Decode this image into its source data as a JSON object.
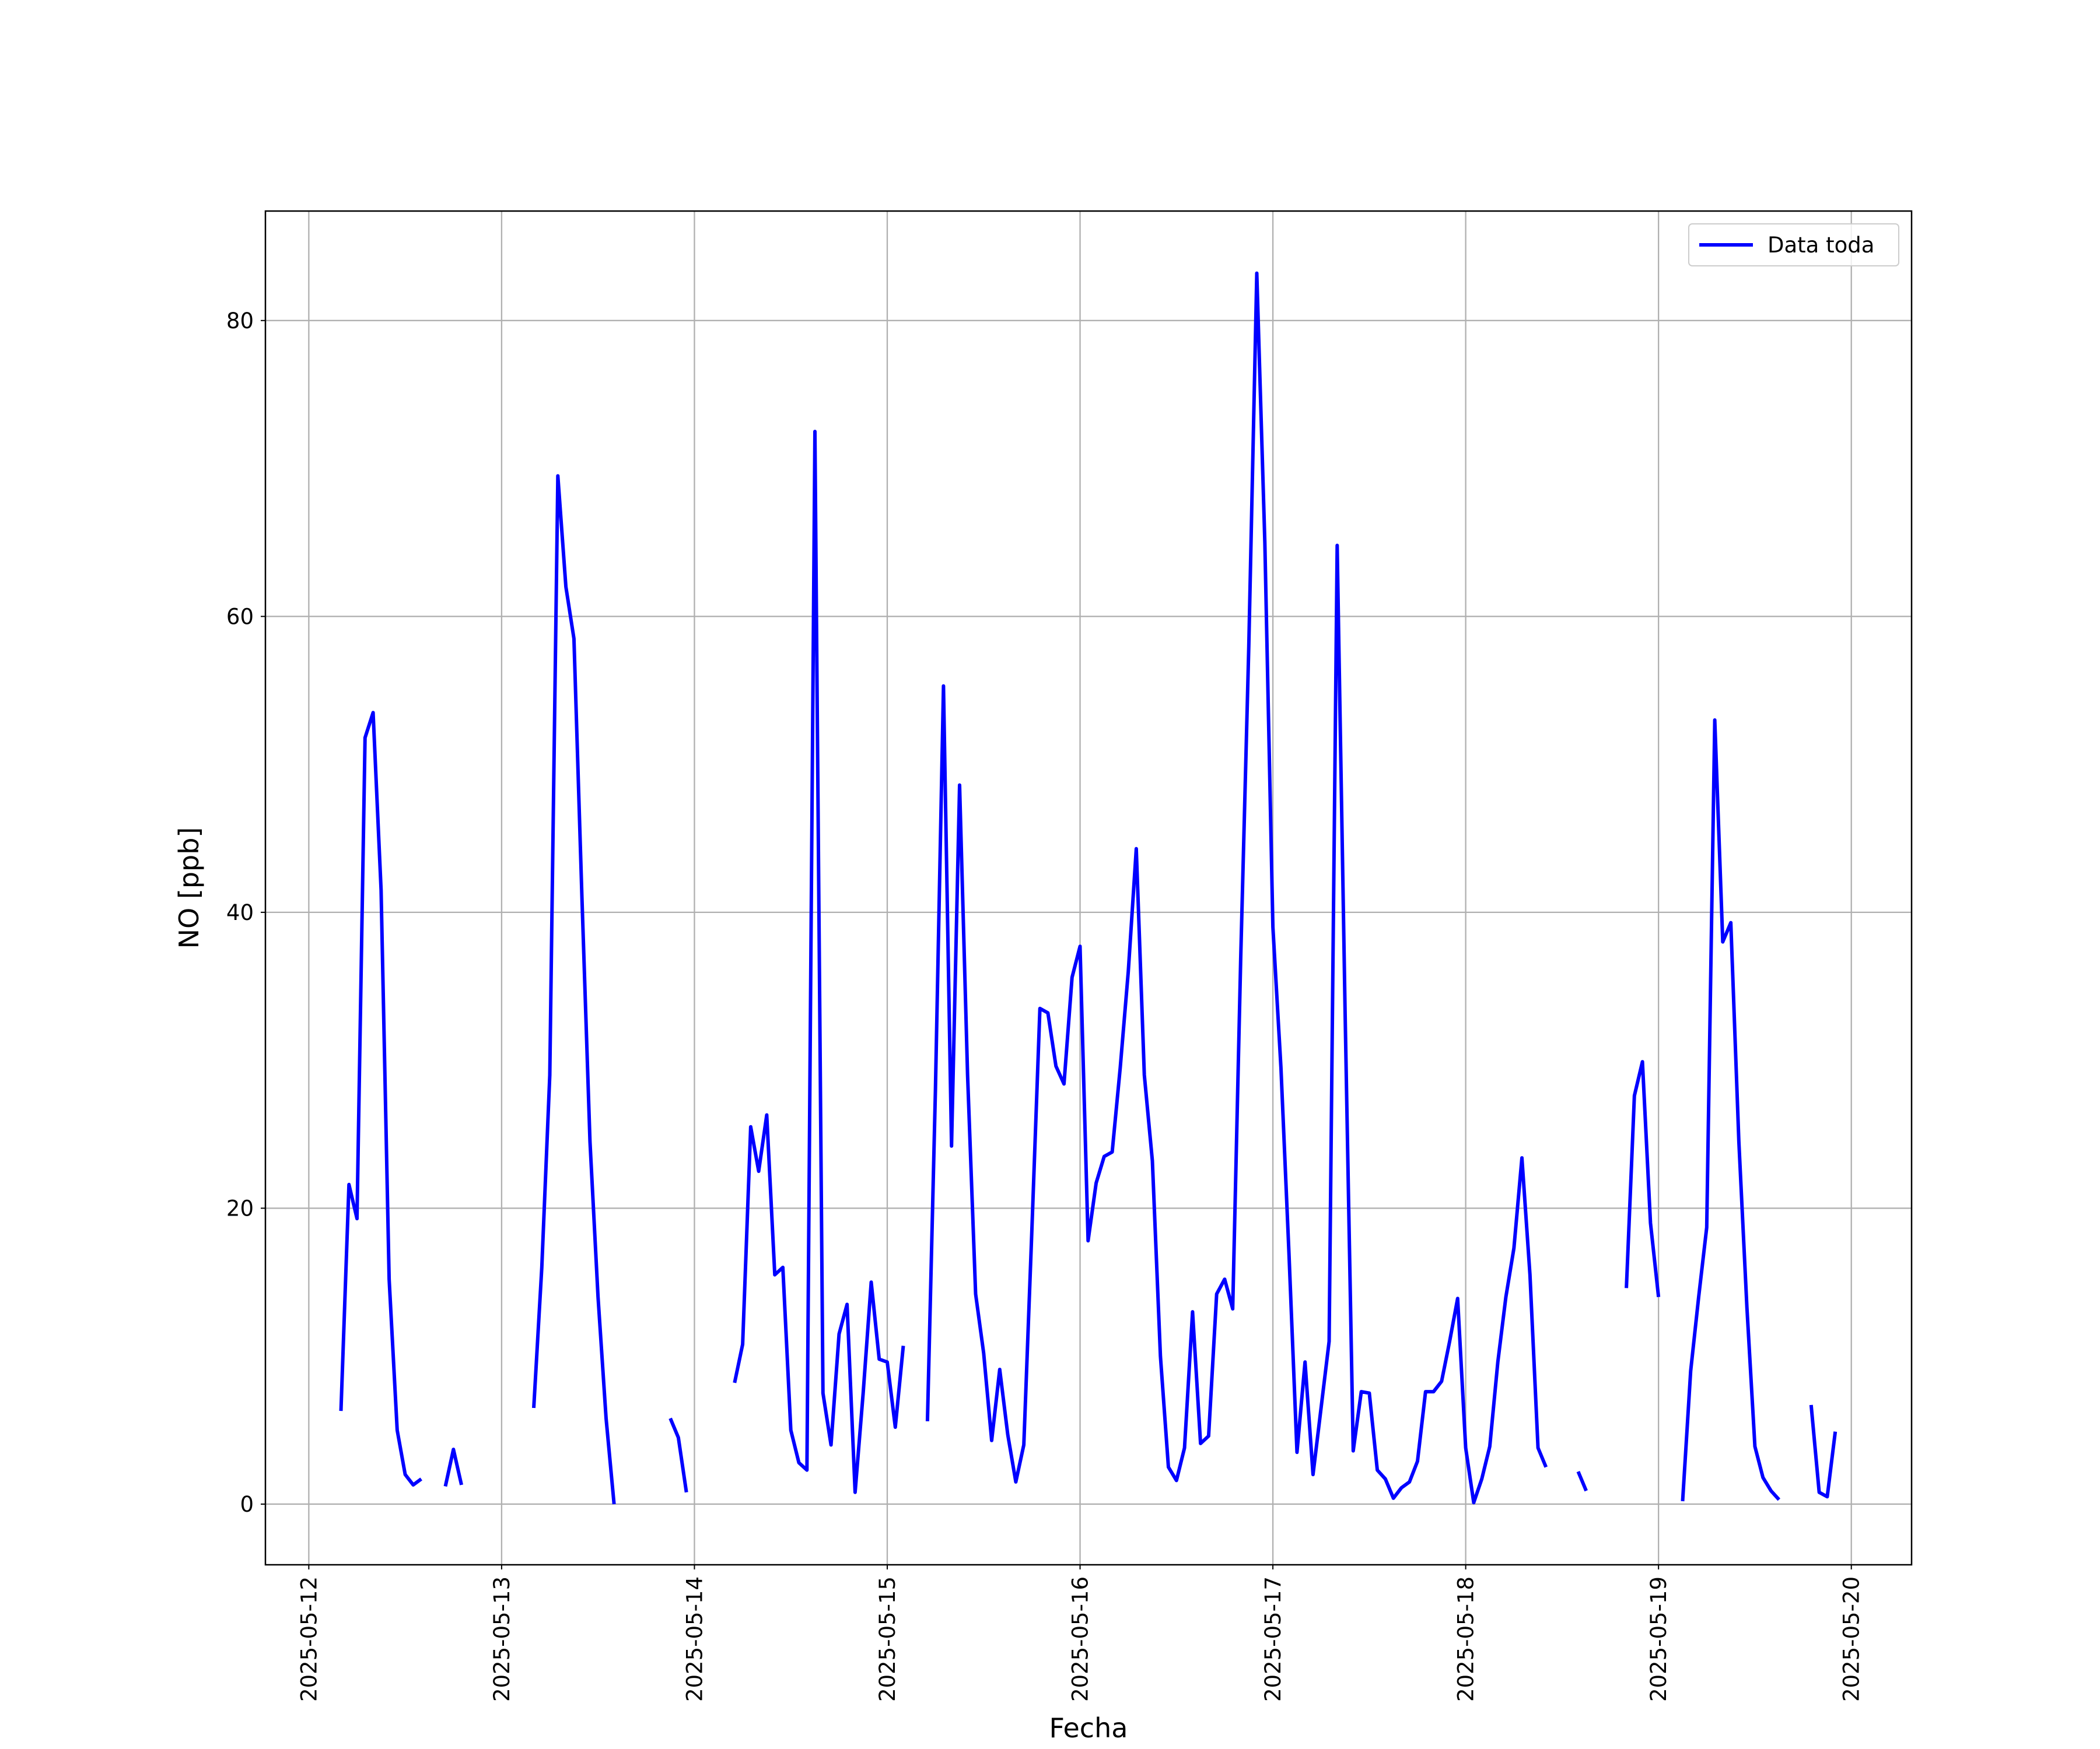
{
  "chart_data": {
    "type": "line",
    "xlabel": "Fecha",
    "ylabel": "NO [ppb]",
    "x": [
      "2025-05-12T04:00",
      "2025-05-12T05:00",
      "2025-05-12T06:00",
      "2025-05-12T07:00",
      "2025-05-12T08:00",
      "2025-05-12T09:00",
      "2025-05-12T10:00",
      "2025-05-12T11:00",
      "2025-05-12T12:00",
      "2025-05-12T13:00",
      "2025-05-12T14:00",
      "2025-05-12T15:00",
      "2025-05-12T17:00",
      "2025-05-12T18:00",
      "2025-05-12T19:00",
      "2025-05-12T20:00",
      "2025-05-13T04:00",
      "2025-05-13T05:00",
      "2025-05-13T06:00",
      "2025-05-13T07:00",
      "2025-05-13T08:00",
      "2025-05-13T09:00",
      "2025-05-13T10:00",
      "2025-05-13T11:00",
      "2025-05-13T12:00",
      "2025-05-13T13:00",
      "2025-05-13T14:00",
      "2025-05-13T15:00",
      "2025-05-13T21:00",
      "2025-05-13T22:00",
      "2025-05-13T23:00",
      "2025-05-14T00:00",
      "2025-05-14T05:00",
      "2025-05-14T06:00",
      "2025-05-14T07:00",
      "2025-05-14T08:00",
      "2025-05-14T09:00",
      "2025-05-14T10:00",
      "2025-05-14T11:00",
      "2025-05-14T12:00",
      "2025-05-14T13:00",
      "2025-05-14T14:00",
      "2025-05-14T15:00",
      "2025-05-14T16:00",
      "2025-05-14T17:00",
      "2025-05-14T18:00",
      "2025-05-14T19:00",
      "2025-05-14T20:00",
      "2025-05-14T21:00",
      "2025-05-14T22:00",
      "2025-05-14T23:00",
      "2025-05-15T00:00",
      "2025-05-15T01:00",
      "2025-05-15T02:00",
      "2025-05-15T03:00",
      "2025-05-15T05:00",
      "2025-05-15T06:00",
      "2025-05-15T07:00",
      "2025-05-15T08:00",
      "2025-05-15T09:00",
      "2025-05-15T10:00",
      "2025-05-15T11:00",
      "2025-05-15T12:00",
      "2025-05-15T13:00",
      "2025-05-15T14:00",
      "2025-05-15T15:00",
      "2025-05-15T16:00",
      "2025-05-15T17:00",
      "2025-05-15T18:00",
      "2025-05-15T19:00",
      "2025-05-15T20:00",
      "2025-05-15T21:00",
      "2025-05-15T22:00",
      "2025-05-15T23:00",
      "2025-05-16T00:00",
      "2025-05-16T01:00",
      "2025-05-16T02:00",
      "2025-05-16T03:00",
      "2025-05-16T04:00",
      "2025-05-16T05:00",
      "2025-05-16T06:00",
      "2025-05-16T07:00",
      "2025-05-16T08:00",
      "2025-05-16T09:00",
      "2025-05-16T10:00",
      "2025-05-16T11:00",
      "2025-05-16T12:00",
      "2025-05-16T13:00",
      "2025-05-16T14:00",
      "2025-05-16T15:00",
      "2025-05-16T16:00",
      "2025-05-16T17:00",
      "2025-05-16T18:00",
      "2025-05-16T19:00",
      "2025-05-16T20:00",
      "2025-05-16T21:00",
      "2025-05-16T22:00",
      "2025-05-16T23:00",
      "2025-05-17T00:00",
      "2025-05-17T01:00",
      "2025-05-17T02:00",
      "2025-05-17T03:00",
      "2025-05-17T04:00",
      "2025-05-17T05:00",
      "2025-05-17T06:00",
      "2025-05-17T07:00",
      "2025-05-17T08:00",
      "2025-05-17T09:00",
      "2025-05-17T10:00",
      "2025-05-17T11:00",
      "2025-05-17T12:00",
      "2025-05-17T13:00",
      "2025-05-17T14:00",
      "2025-05-17T15:00",
      "2025-05-17T16:00",
      "2025-05-17T17:00",
      "2025-05-17T18:00",
      "2025-05-17T19:00",
      "2025-05-17T20:00",
      "2025-05-17T21:00",
      "2025-05-17T22:00",
      "2025-05-17T23:00",
      "2025-05-18T00:00",
      "2025-05-18T01:00",
      "2025-05-18T02:00",
      "2025-05-18T03:00",
      "2025-05-18T04:00",
      "2025-05-18T05:00",
      "2025-05-18T06:00",
      "2025-05-18T07:00",
      "2025-05-18T08:00",
      "2025-05-18T09:00",
      "2025-05-18T10:00",
      "2025-05-18T11:00",
      "2025-05-18T14:00",
      "2025-05-18T15:00",
      "2025-05-18T16:00",
      "2025-05-18T20:00",
      "2025-05-18T21:00",
      "2025-05-18T22:00",
      "2025-05-18T23:00",
      "2025-05-19T00:00",
      "2025-05-19T01:00",
      "2025-05-19T03:00",
      "2025-05-19T04:00",
      "2025-05-19T05:00",
      "2025-05-19T06:00",
      "2025-05-19T07:00",
      "2025-05-19T08:00",
      "2025-05-19T09:00",
      "2025-05-19T10:00",
      "2025-05-19T11:00",
      "2025-05-19T12:00",
      "2025-05-19T13:00",
      "2025-05-19T14:00",
      "2025-05-19T15:00",
      "2025-05-19T16:00",
      "2025-05-19T19:00",
      "2025-05-19T20:00",
      "2025-05-19T21:00",
      "2025-05-19T22:00"
    ],
    "series": [
      {
        "name": "Data toda",
        "color": "#0000ff",
        "values": [
          6.3,
          21.6,
          19.3,
          51.8,
          53.5,
          41.5,
          15.2,
          5,
          2,
          1.3,
          1.7,
          null,
          1.2,
          3.7,
          1.3,
          null,
          6.5,
          16,
          29,
          69.5,
          62,
          58.5,
          41,
          24.5,
          14,
          5.8,
          0,
          null,
          5.8,
          4.5,
          0.8,
          null,
          8.2,
          10.8,
          25.5,
          22.5,
          26.3,
          15.5,
          16,
          5,
          2.8,
          2.3,
          72.5,
          7.5,
          4,
          11.5,
          13.5,
          0.8,
          7.5,
          15,
          9.8,
          9.6,
          5.2,
          10.7,
          null,
          5.6,
          28,
          55.3,
          24.2,
          48.6,
          29,
          14.2,
          10.2,
          4.3,
          9.1,
          4.7,
          1.5,
          4,
          18.5,
          33.5,
          33.2,
          29.6,
          28.4,
          35.6,
          37.7,
          17.8,
          21.7,
          23.5,
          23.8,
          29.5,
          36,
          44.3,
          29,
          23.2,
          10,
          2.5,
          1.6,
          3.8,
          13,
          4.1,
          4.6,
          14.2,
          15.2,
          13.2,
          37,
          58,
          83.2,
          65,
          39,
          29.5,
          17,
          3.5,
          9.6,
          2,
          6.5,
          11,
          64.8,
          33,
          3.6,
          7.6,
          7.5,
          2.3,
          1.7,
          0.4,
          1.1,
          1.5,
          2.9,
          7.6,
          7.6,
          8.3,
          11,
          13.9,
          3.8,
          0.1,
          1.7,
          3.9,
          9.6,
          14,
          17.3,
          23.4,
          15.5,
          3.8,
          2.5,
          null,
          2.2,
          0.9,
          null,
          14.6,
          27.6,
          29.9,
          19,
          14,
          null,
          0.2,
          9,
          14,
          18.7,
          53,
          38,
          39.3,
          24.5,
          13.3,
          3.9,
          1.8,
          0.9,
          0.3,
          null,
          6.7,
          0.8,
          0.5,
          4.9
        ]
      }
    ],
    "xlim": [
      "2025-05-11T18:36",
      "2025-05-20T07:30"
    ],
    "xticks": [
      "2025-05-12",
      "2025-05-13",
      "2025-05-14",
      "2025-05-15",
      "2025-05-16",
      "2025-05-17",
      "2025-05-18",
      "2025-05-19",
      "2025-05-20"
    ],
    "ylim": [
      -4.1,
      87.4
    ],
    "yticks": [
      0,
      20,
      40,
      60,
      80
    ],
    "grid": true,
    "legend": "upper right"
  }
}
